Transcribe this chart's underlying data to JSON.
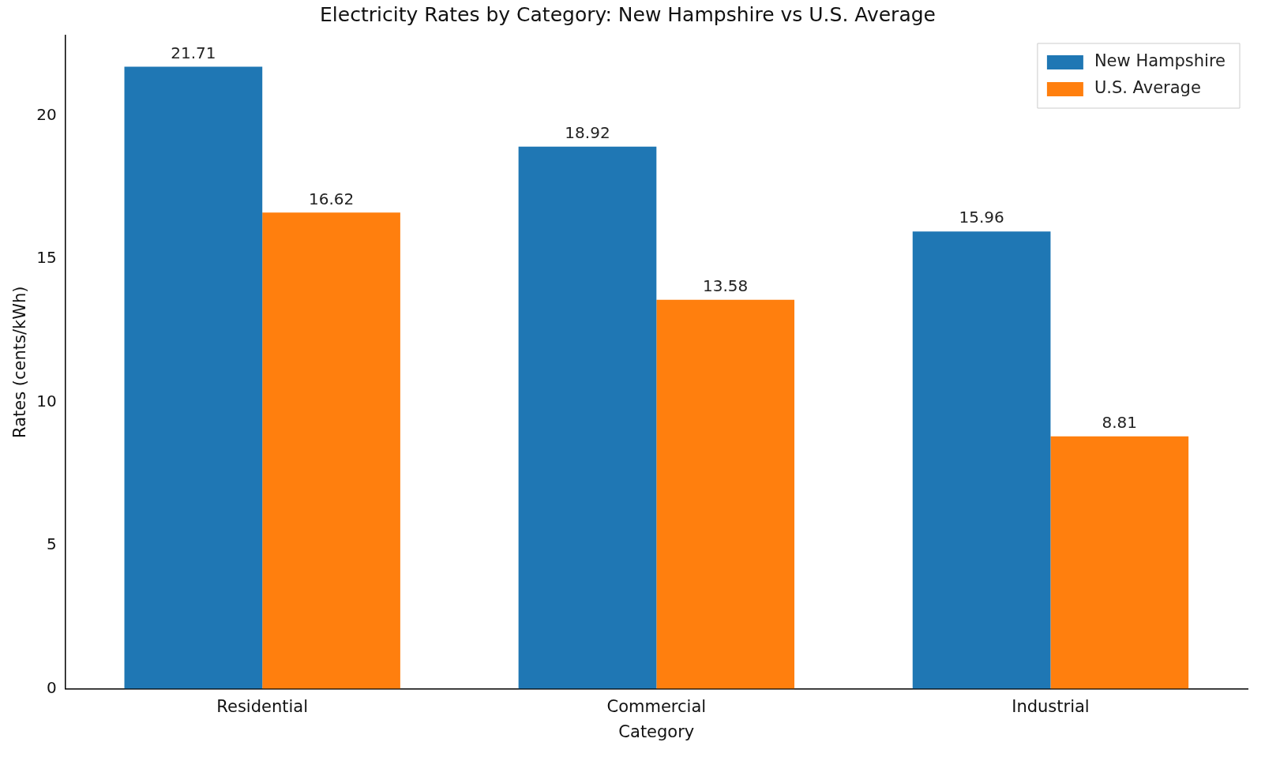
{
  "chart_data": {
    "type": "bar",
    "title": "Electricity Rates by Category: New Hampshire vs U.S. Average",
    "xlabel": "Category",
    "ylabel": "Rates (cents/kWh)",
    "categories": [
      "Residential",
      "Commercial",
      "Industrial"
    ],
    "series": [
      {
        "name": "New Hampshire",
        "color": "#1f77b4",
        "values": [
          21.71,
          18.92,
          15.96
        ]
      },
      {
        "name": "U.S. Average",
        "color": "#ff7f0e",
        "values": [
          16.62,
          13.58,
          8.81
        ]
      }
    ],
    "ylim": [
      0,
      22.8
    ],
    "yticks": [
      0,
      5,
      10,
      15,
      20
    ],
    "grid": false,
    "legend": "top right",
    "data_labels": true
  }
}
